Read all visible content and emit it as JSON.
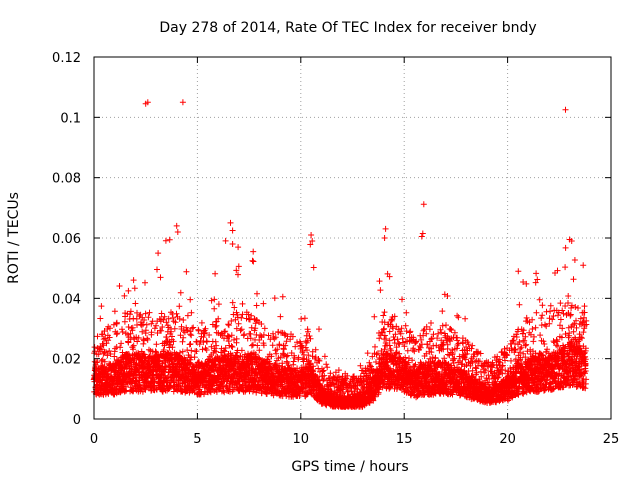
{
  "chart_data": {
    "type": "scatter",
    "title": "Day 278 of 2014, Rate Of TEC Index for receiver bndy",
    "xlabel": "GPS time / hours",
    "ylabel": "ROTI / TECUs",
    "xlim": [
      0,
      25
    ],
    "ylim": [
      0,
      0.12
    ],
    "x_ticks": [
      "0",
      "5",
      "10",
      "15",
      "20",
      "25"
    ],
    "y_ticks": [
      "0",
      "0.02",
      "0.04",
      "0.06",
      "0.08",
      "0.1",
      "0.12"
    ],
    "grid": true,
    "marker": "plus",
    "series": [
      {
        "name": "ROTI",
        "color": "#ff0000",
        "profile": [
          {
            "x": 0.0,
            "base": 0.012,
            "spread": 0.01,
            "peak": 0.038
          },
          {
            "x": 1.0,
            "base": 0.012,
            "spread": 0.012,
            "peak": 0.043
          },
          {
            "x": 1.5,
            "base": 0.013,
            "spread": 0.014,
            "peak": 0.05
          },
          {
            "x": 2.5,
            "base": 0.013,
            "spread": 0.014,
            "peak": 0.045
          },
          {
            "x": 3.0,
            "base": 0.013,
            "spread": 0.014,
            "peak": 0.055
          },
          {
            "x": 4.0,
            "base": 0.013,
            "spread": 0.014,
            "peak": 0.064
          },
          {
            "x": 5.0,
            "base": 0.012,
            "spread": 0.012,
            "peak": 0.035
          },
          {
            "x": 6.5,
            "base": 0.013,
            "spread": 0.014,
            "peak": 0.065
          },
          {
            "x": 7.5,
            "base": 0.013,
            "spread": 0.014,
            "peak": 0.055
          },
          {
            "x": 8.5,
            "base": 0.012,
            "spread": 0.012,
            "peak": 0.044
          },
          {
            "x": 10.0,
            "base": 0.011,
            "spread": 0.01,
            "peak": 0.048
          },
          {
            "x": 10.5,
            "base": 0.012,
            "spread": 0.012,
            "peak": 0.061
          },
          {
            "x": 11.0,
            "base": 0.009,
            "spread": 0.006,
            "peak": 0.032
          },
          {
            "x": 11.5,
            "base": 0.008,
            "spread": 0.004,
            "peak": 0.016
          },
          {
            "x": 13.0,
            "base": 0.008,
            "spread": 0.004,
            "peak": 0.018
          },
          {
            "x": 13.5,
            "base": 0.01,
            "spread": 0.008,
            "peak": 0.03
          },
          {
            "x": 14.0,
            "base": 0.014,
            "spread": 0.014,
            "peak": 0.063
          },
          {
            "x": 15.0,
            "base": 0.013,
            "spread": 0.012,
            "peak": 0.04
          },
          {
            "x": 15.5,
            "base": 0.011,
            "spread": 0.01,
            "peak": 0.025
          },
          {
            "x": 16.0,
            "base": 0.012,
            "spread": 0.012,
            "peak": 0.03
          },
          {
            "x": 17.0,
            "base": 0.012,
            "spread": 0.012,
            "peak": 0.043
          },
          {
            "x": 18.0,
            "base": 0.011,
            "spread": 0.01,
            "peak": 0.035
          },
          {
            "x": 19.0,
            "base": 0.009,
            "spread": 0.006,
            "peak": 0.02
          },
          {
            "x": 20.0,
            "base": 0.01,
            "spread": 0.008,
            "peak": 0.025
          },
          {
            "x": 20.5,
            "base": 0.012,
            "spread": 0.012,
            "peak": 0.049
          },
          {
            "x": 21.5,
            "base": 0.013,
            "spread": 0.014,
            "peak": 0.05
          },
          {
            "x": 22.5,
            "base": 0.014,
            "spread": 0.014,
            "peak": 0.052
          },
          {
            "x": 23.0,
            "base": 0.015,
            "spread": 0.016,
            "peak": 0.06
          },
          {
            "x": 23.8,
            "base": 0.014,
            "spread": 0.014,
            "peak": 0.052
          }
        ],
        "outliers": [
          {
            "x": 2.6,
            "y": 0.105
          },
          {
            "x": 2.5,
            "y": 0.1045
          },
          {
            "x": 4.3,
            "y": 0.105
          },
          {
            "x": 22.8,
            "y": 0.1025
          },
          {
            "x": 15.95,
            "y": 0.0712
          },
          {
            "x": 15.9,
            "y": 0.0615
          },
          {
            "x": 15.85,
            "y": 0.0605
          },
          {
            "x": 4.0,
            "y": 0.064
          },
          {
            "x": 4.05,
            "y": 0.062
          },
          {
            "x": 6.6,
            "y": 0.065
          },
          {
            "x": 6.7,
            "y": 0.0625
          },
          {
            "x": 6.7,
            "y": 0.058
          },
          {
            "x": 10.5,
            "y": 0.061
          },
          {
            "x": 10.55,
            "y": 0.059
          },
          {
            "x": 14.1,
            "y": 0.063
          },
          {
            "x": 14.05,
            "y": 0.06
          },
          {
            "x": 23.0,
            "y": 0.0595
          },
          {
            "x": 23.1,
            "y": 0.059
          },
          {
            "x": 3.1,
            "y": 0.055
          },
          {
            "x": 7.7,
            "y": 0.0555
          }
        ]
      }
    ]
  }
}
